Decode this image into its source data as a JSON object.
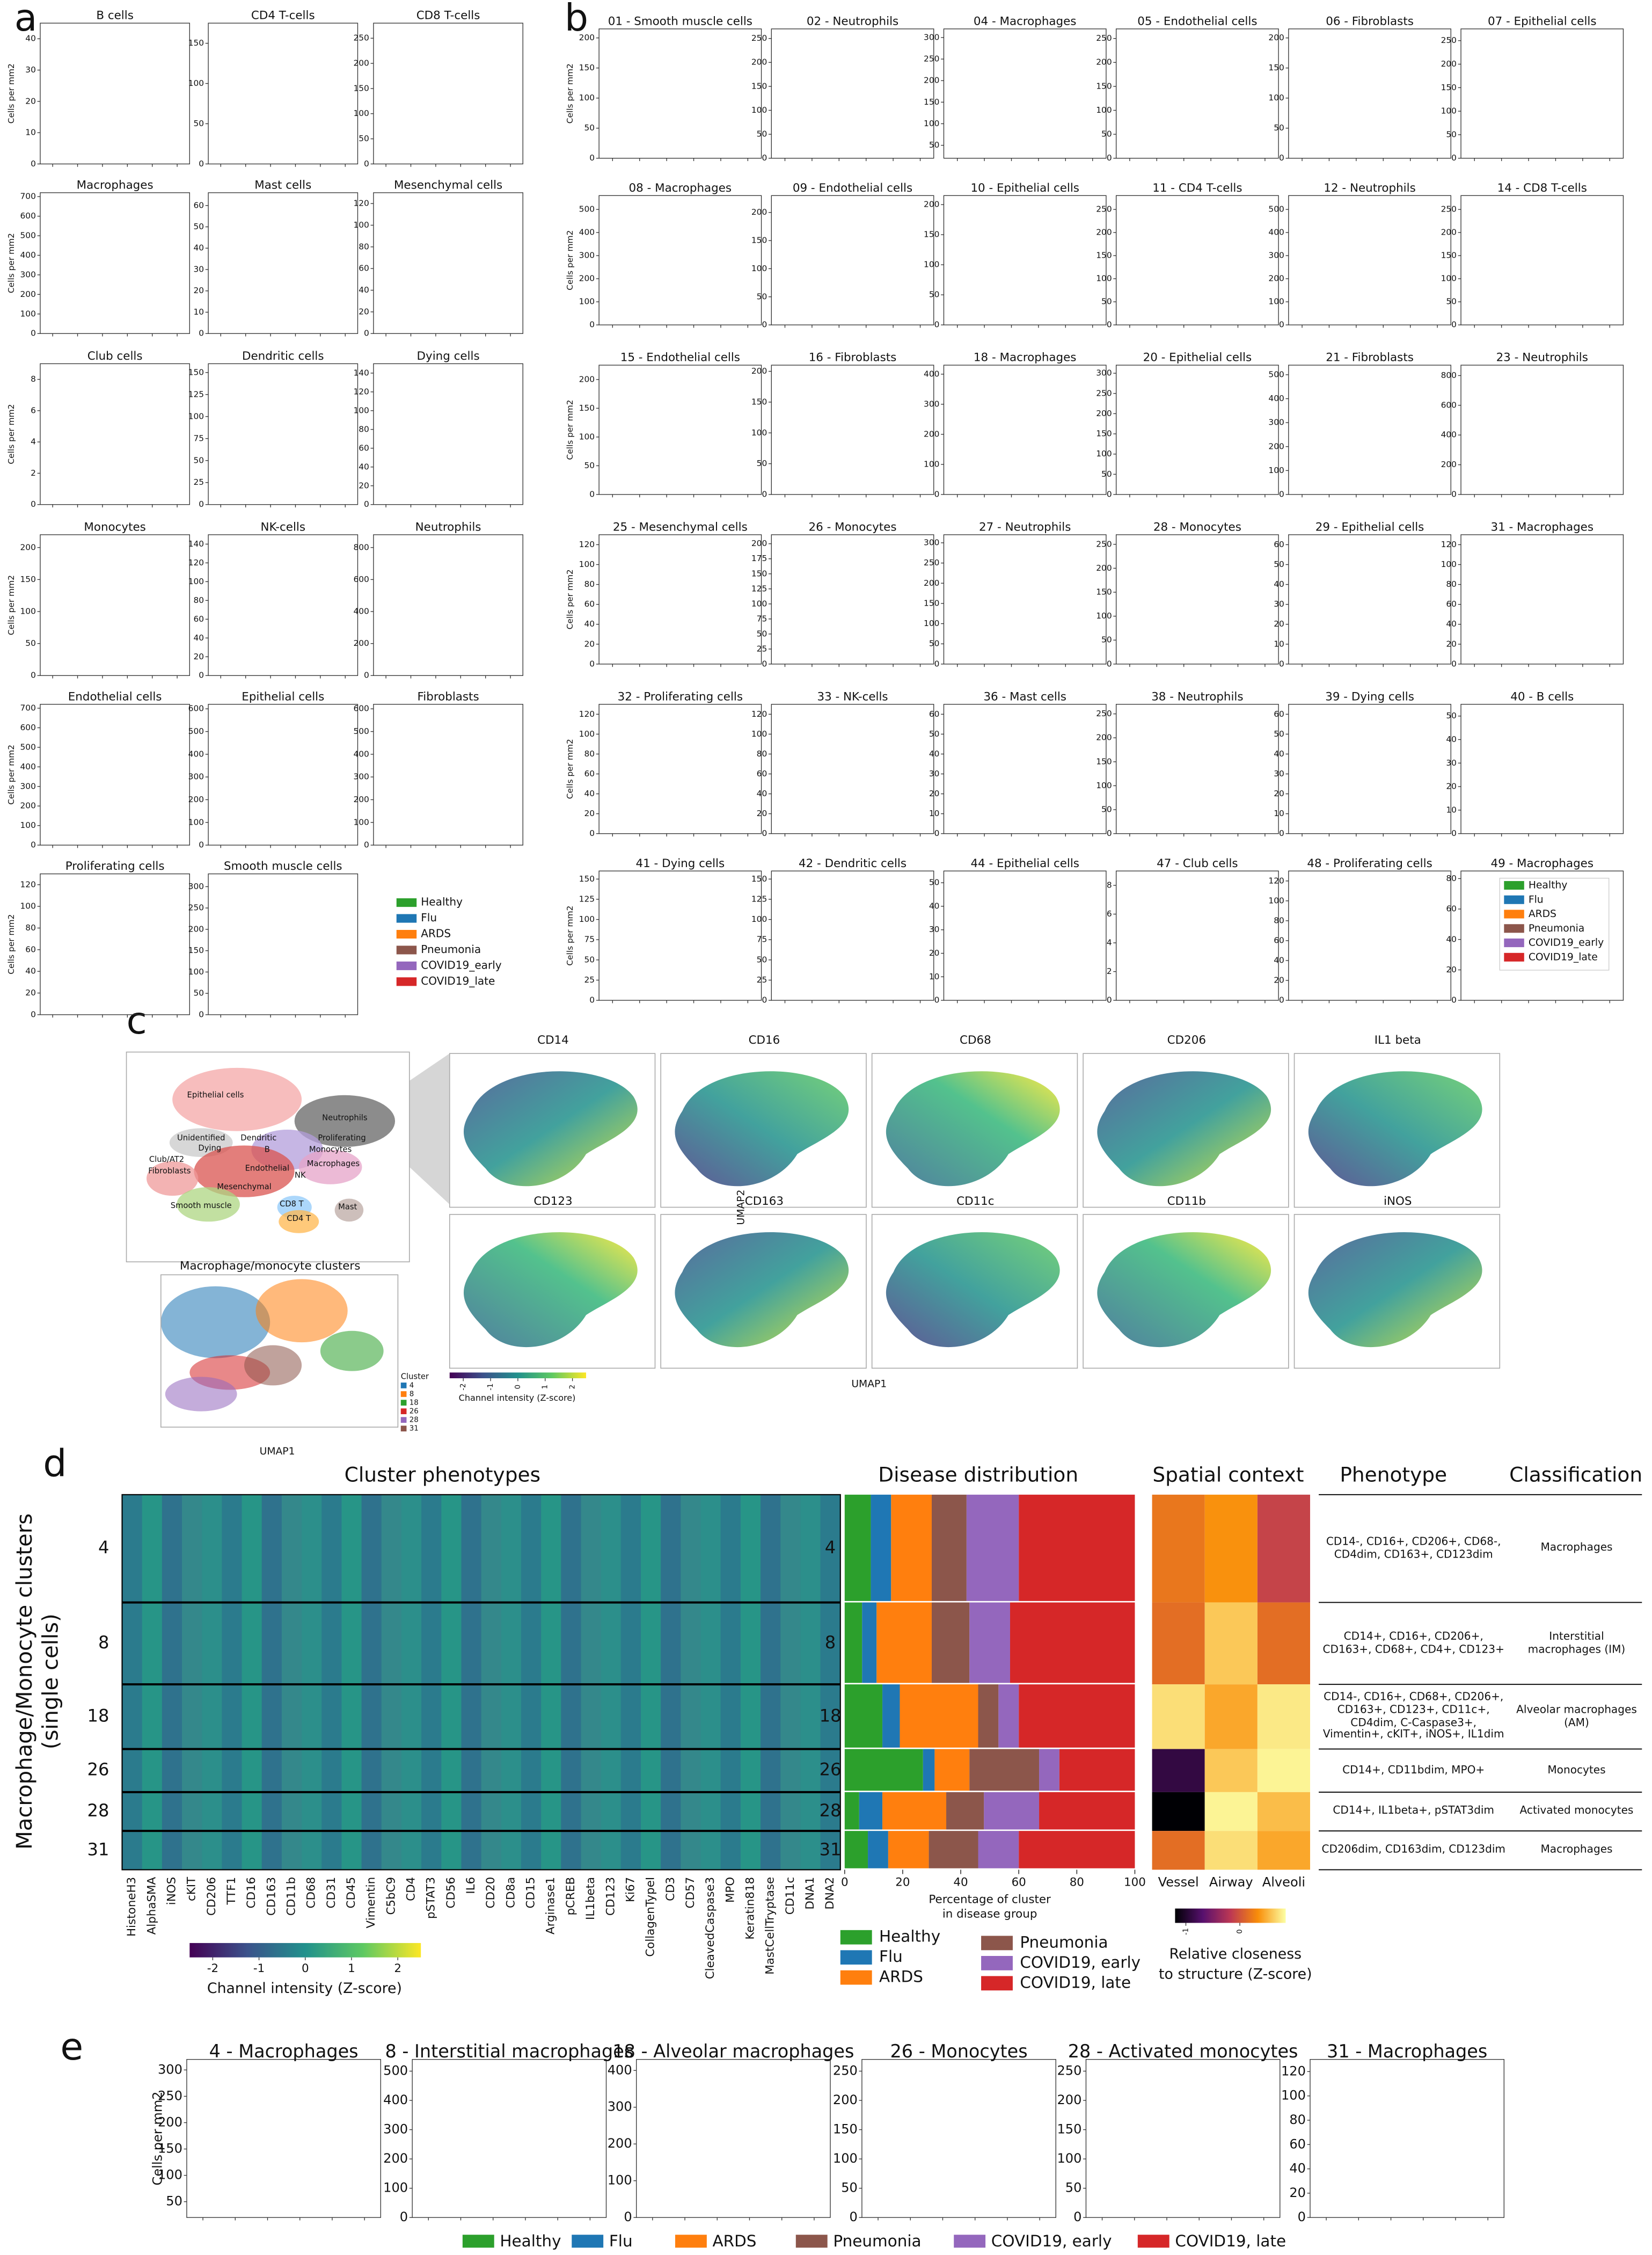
{
  "panel_labels": [
    "a",
    "b",
    "c",
    "d",
    "e"
  ],
  "groups": [
    {
      "name": "Healthy",
      "color": "#2ca02c"
    },
    {
      "name": "Flu",
      "color": "#1f77b4"
    },
    {
      "name": "ARDS",
      "color": "#ff7f0e"
    },
    {
      "name": "Pneumonia",
      "color": "#8c564b"
    },
    {
      "name": "COVID19_early",
      "color": "#9467bd"
    },
    {
      "name": "COVID19_late",
      "color": "#d62728"
    }
  ],
  "panel_a": {
    "y_label": "Cells per mm2",
    "plots": [
      {
        "title": "B cells",
        "ylim": [
          0,
          45
        ],
        "yticks": [
          0,
          10,
          20,
          30,
          40
        ]
      },
      {
        "title": "CD4 T-cells",
        "ylim": [
          0,
          175
        ],
        "yticks": [
          0,
          50,
          100,
          150
        ]
      },
      {
        "title": "CD8 T-cells",
        "ylim": [
          0,
          280
        ],
        "yticks": [
          0,
          50,
          100,
          150,
          200,
          250
        ]
      },
      {
        "title": "Macrophages",
        "ylim": [
          0,
          720
        ],
        "yticks": [
          0,
          100,
          200,
          300,
          400,
          500,
          600,
          700
        ]
      },
      {
        "title": "Mast cells",
        "ylim": [
          0,
          66
        ],
        "yticks": [
          0,
          10,
          20,
          30,
          40,
          50,
          60
        ]
      },
      {
        "title": "Mesenchymal cells",
        "ylim": [
          0,
          130
        ],
        "yticks": [
          0,
          20,
          40,
          60,
          80,
          100,
          120
        ]
      },
      {
        "title": "Club cells",
        "ylim": [
          0,
          9
        ],
        "yticks": [
          0,
          2,
          4,
          6,
          8
        ]
      },
      {
        "title": "Dendritic cells",
        "ylim": [
          0,
          160
        ],
        "yticks": [
          0,
          25,
          50,
          75,
          100,
          125,
          150
        ]
      },
      {
        "title": "Dying cells",
        "ylim": [
          0,
          150
        ],
        "yticks": [
          0,
          20,
          40,
          60,
          80,
          100,
          120,
          140
        ]
      },
      {
        "title": "Monocytes",
        "ylim": [
          0,
          220
        ],
        "yticks": [
          0,
          50,
          100,
          150,
          200
        ]
      },
      {
        "title": "NK-cells",
        "ylim": [
          0,
          150
        ],
        "yticks": [
          0,
          20,
          40,
          60,
          80,
          100,
          120,
          140
        ]
      },
      {
        "title": "Neutrophils",
        "ylim": [
          0,
          880
        ],
        "yticks": [
          0,
          200,
          400,
          600,
          800
        ]
      },
      {
        "title": "Endothelial cells",
        "ylim": [
          0,
          720
        ],
        "yticks": [
          0,
          100,
          200,
          300,
          400,
          500,
          600,
          700
        ]
      },
      {
        "title": "Epithelial cells",
        "ylim": [
          0,
          620
        ],
        "yticks": [
          0,
          100,
          200,
          300,
          400,
          500,
          600
        ]
      },
      {
        "title": "Fibroblasts",
        "ylim": [
          0,
          620
        ],
        "yticks": [
          0,
          100,
          200,
          300,
          400,
          500,
          600
        ]
      },
      {
        "title": "Proliferating cells",
        "ylim": [
          0,
          130
        ],
        "yticks": [
          0,
          20,
          40,
          60,
          80,
          100,
          120
        ]
      },
      {
        "title": "Smooth muscle cells",
        "ylim": [
          0,
          330
        ],
        "yticks": [
          0,
          50,
          100,
          150,
          200,
          250,
          300
        ]
      }
    ]
  },
  "panel_b": {
    "y_label": "Cells per mm2",
    "plots": [
      {
        "title": "01 - Smooth muscle cells",
        "ylim": [
          0,
          215
        ],
        "yticks": [
          0,
          50,
          100,
          150,
          200
        ]
      },
      {
        "title": "02 - Neutrophils",
        "ylim": [
          0,
          270
        ],
        "yticks": [
          0,
          50,
          100,
          150,
          200,
          250
        ]
      },
      {
        "title": "04 - Macrophages",
        "ylim": [
          20,
          320
        ],
        "yticks": [
          50,
          100,
          150,
          200,
          250,
          300
        ]
      },
      {
        "title": "05 - Endothelial cells",
        "ylim": [
          0,
          270
        ],
        "yticks": [
          0,
          50,
          100,
          150,
          200,
          250
        ]
      },
      {
        "title": "06 - Fibroblasts",
        "ylim": [
          0,
          215
        ],
        "yticks": [
          0,
          50,
          100,
          150,
          200
        ]
      },
      {
        "title": "07 - Epithelial cells",
        "ylim": [
          0,
          275
        ],
        "yticks": [
          0,
          50,
          100,
          150,
          200,
          250
        ]
      },
      {
        "title": "08 - Macrophages",
        "ylim": [
          0,
          560
        ],
        "yticks": [
          0,
          100,
          200,
          300,
          400,
          500
        ]
      },
      {
        "title": "09 - Endothelial cells",
        "ylim": [
          0,
          230
        ],
        "yticks": [
          0,
          50,
          100,
          150,
          200
        ]
      },
      {
        "title": "10 - Epithelial cells",
        "ylim": [
          0,
          215
        ],
        "yticks": [
          0,
          50,
          100,
          150,
          200
        ]
      },
      {
        "title": "11 - CD4 T-cells",
        "ylim": [
          0,
          280
        ],
        "yticks": [
          0,
          50,
          100,
          150,
          200,
          250
        ]
      },
      {
        "title": "12 - Neutrophils",
        "ylim": [
          0,
          560
        ],
        "yticks": [
          0,
          100,
          200,
          300,
          400,
          500
        ]
      },
      {
        "title": "14 - CD8 T-cells",
        "ylim": [
          0,
          280
        ],
        "yticks": [
          0,
          50,
          100,
          150,
          200,
          250
        ]
      },
      {
        "title": "15 - Endothelial cells",
        "ylim": [
          0,
          225
        ],
        "yticks": [
          0,
          50,
          100,
          150,
          200
        ]
      },
      {
        "title": "16 - Fibroblasts",
        "ylim": [
          0,
          210
        ],
        "yticks": [
          0,
          50,
          100,
          150,
          200
        ]
      },
      {
        "title": "18 - Macrophages",
        "ylim": [
          0,
          430
        ],
        "yticks": [
          0,
          100,
          200,
          300,
          400
        ]
      },
      {
        "title": "20 - Epithelial cells",
        "ylim": [
          0,
          320
        ],
        "yticks": [
          0,
          50,
          100,
          150,
          200,
          250,
          300
        ]
      },
      {
        "title": "21 - Fibroblasts",
        "ylim": [
          0,
          540
        ],
        "yticks": [
          0,
          100,
          200,
          300,
          400,
          500
        ]
      },
      {
        "title": "23 - Neutrophils",
        "ylim": [
          0,
          870
        ],
        "yticks": [
          0,
          200,
          400,
          600,
          800
        ]
      },
      {
        "title": "25 - Mesenchymal cells",
        "ylim": [
          0,
          130
        ],
        "yticks": [
          0,
          20,
          40,
          60,
          80,
          100,
          120
        ]
      },
      {
        "title": "26 - Monocytes",
        "ylim": [
          0,
          215
        ],
        "yticks": [
          0,
          25,
          50,
          75,
          100,
          125,
          150,
          175,
          200
        ]
      },
      {
        "title": "27 - Neutrophils",
        "ylim": [
          0,
          320
        ],
        "yticks": [
          0,
          50,
          100,
          150,
          200,
          250,
          300
        ]
      },
      {
        "title": "28 - Monocytes",
        "ylim": [
          0,
          270
        ],
        "yticks": [
          0,
          50,
          100,
          150,
          200,
          250
        ]
      },
      {
        "title": "29 - Epithelial cells",
        "ylim": [
          0,
          65
        ],
        "yticks": [
          0,
          10,
          20,
          30,
          40,
          50,
          60
        ]
      },
      {
        "title": "31 - Macrophages",
        "ylim": [
          0,
          130
        ],
        "yticks": [
          0,
          20,
          40,
          60,
          80,
          100,
          120
        ]
      },
      {
        "title": "32 - Proliferating cells",
        "ylim": [
          0,
          130
        ],
        "yticks": [
          0,
          20,
          40,
          60,
          80,
          100,
          120
        ]
      },
      {
        "title": "33 - NK-cells",
        "ylim": [
          0,
          130
        ],
        "yticks": [
          0,
          20,
          40,
          60,
          80,
          100,
          120
        ]
      },
      {
        "title": "36 - Mast cells",
        "ylim": [
          0,
          65
        ],
        "yticks": [
          0,
          10,
          20,
          30,
          40,
          50,
          60
        ]
      },
      {
        "title": "38 - Neutrophils",
        "ylim": [
          0,
          270
        ],
        "yticks": [
          0,
          50,
          100,
          150,
          200,
          250
        ]
      },
      {
        "title": "39 - Dying cells",
        "ylim": [
          0,
          65
        ],
        "yticks": [
          0,
          10,
          20,
          30,
          40,
          50,
          60
        ]
      },
      {
        "title": "40 - B cells",
        "ylim": [
          0,
          55
        ],
        "yticks": [
          0,
          10,
          20,
          30,
          40,
          50
        ]
      },
      {
        "title": "41 - Dying cells",
        "ylim": [
          0,
          160
        ],
        "yticks": [
          0,
          25,
          50,
          75,
          100,
          125,
          150
        ]
      },
      {
        "title": "42 - Dendritic cells",
        "ylim": [
          0,
          160
        ],
        "yticks": [
          0,
          25,
          50,
          75,
          100,
          125,
          150
        ]
      },
      {
        "title": "44 - Epithelial cells",
        "ylim": [
          0,
          55
        ],
        "yticks": [
          0,
          10,
          20,
          30,
          40,
          50
        ]
      },
      {
        "title": "47 - Club cells",
        "ylim": [
          0,
          9
        ],
        "yticks": [
          0,
          2,
          4,
          6,
          8
        ]
      },
      {
        "title": "48 - Proliferating cells",
        "ylim": [
          0,
          130
        ],
        "yticks": [
          0,
          20,
          40,
          60,
          80,
          100,
          120
        ]
      },
      {
        "title": "49 - Macrophages",
        "ylim": [
          0,
          85
        ],
        "yticks": [
          0,
          20,
          40,
          60,
          80
        ]
      }
    ]
  },
  "panel_c": {
    "overview_labels": [
      "Epithelial cells",
      "Neutrophils",
      "Unidentified",
      "Dendritic",
      "Proliferating",
      "Dying",
      "B",
      "Monocytes",
      "Club/AT2",
      "Macrophages",
      "Fibroblasts",
      "Endothelial",
      "NK",
      "Mesenchymal",
      "Smooth muscle",
      "CD8 T",
      "CD4 T",
      "Mast"
    ],
    "cluster_title": "Macrophage/monocyte clusters",
    "cluster_x_label": "UMAP1",
    "cluster_legend_title": "Cluster",
    "clusters": [
      {
        "name": "4",
        "color": "#1f77b4"
      },
      {
        "name": "8",
        "color": "#ff7f0e"
      },
      {
        "name": "18",
        "color": "#2ca02c"
      },
      {
        "name": "26",
        "color": "#d62728"
      },
      {
        "name": "28",
        "color": "#9467bd"
      },
      {
        "name": "31",
        "color": "#8c564b"
      }
    ],
    "markers": [
      "CD14",
      "CD16",
      "CD68",
      "CD206",
      "IL1 beta",
      "CD123",
      "CD163",
      "CD11c",
      "CD11b",
      "iNOS"
    ],
    "y_label": "UMAP2",
    "x_label": "UMAP1",
    "colorbar_label": "Channel intensity (Z-score)",
    "colorbar_lim": [
      -2.5,
      2.5
    ],
    "colorbar_ticks": [
      -2,
      -1,
      0,
      1,
      2
    ]
  },
  "panel_d": {
    "heatmap_title": "Cluster phenotypes",
    "y_label_lines": [
      "Macrophage/Monocyte clusters",
      "(single cells)"
    ],
    "clusters": [
      "4",
      "8",
      "18",
      "26",
      "28",
      "31"
    ],
    "markers": [
      "HistoneH3",
      "AlphaSMA",
      "iNOS",
      "cKIT",
      "CD206",
      "TTF1",
      "CD16",
      "CD163",
      "CD11b",
      "CD68",
      "CD31",
      "CD45",
      "Vimentin",
      "C5bC9",
      "CD4",
      "pSTAT3",
      "CD56",
      "IL6",
      "CD20",
      "CD8a",
      "CD15",
      "Arginase1",
      "pCREB",
      "IL1beta",
      "CD123",
      "Ki67",
      "CollagenTypeI",
      "CD3",
      "CD57",
      "CleavedCaspase3",
      "MPO",
      "Keratin818",
      "MastCellTryptase",
      "CD11c",
      "DNA1",
      "DNA2"
    ],
    "colorbar_label": "Channel intensity (Z-score)",
    "colorbar_lim": [
      -2.5,
      2.5
    ],
    "colorbar_ticks": [
      -2,
      -1,
      0,
      1,
      2
    ],
    "disease_distribution": {
      "title": "Disease distribution",
      "x_label_lines": [
        "Percentage of cluster",
        "in disease group"
      ],
      "xlim": [
        0,
        100
      ],
      "xticks": [
        0,
        20,
        40,
        60,
        80,
        100
      ],
      "legend": [
        "Healthy",
        "Flu",
        "ARDS",
        "Pneumonia",
        "COVID19, early",
        "COVID19, late"
      ],
      "rows": [
        {
          "values": [
            9,
            7,
            14,
            12,
            18,
            40
          ]
        },
        {
          "values": [
            6,
            5,
            19,
            13,
            14,
            43
          ]
        },
        {
          "values": [
            13,
            6,
            27,
            7,
            7,
            40
          ]
        },
        {
          "values": [
            27,
            4,
            12,
            24,
            7,
            26
          ]
        },
        {
          "values": [
            5,
            8,
            22,
            13,
            19,
            33
          ]
        },
        {
          "values": [
            8,
            7,
            14,
            17,
            14,
            40
          ]
        }
      ]
    },
    "spatial": {
      "title": "Spatial context",
      "columns": [
        "Vessel",
        "Airway",
        "Alveoli"
      ],
      "clim": [
        -1.2,
        0.85
      ],
      "colorbar_ticks": [
        -1,
        0
      ],
      "colorbar_label_lines": [
        "Relative closeness",
        "to structure (Z-score)"
      ],
      "values": [
        [
          0.2,
          0.35,
          -0.1
        ],
        [
          0.15,
          0.6,
          0.15
        ],
        [
          0.7,
          0.45,
          0.75
        ],
        [
          -0.9,
          0.6,
          0.8
        ],
        [
          -1.2,
          0.8,
          0.55
        ],
        [
          0.15,
          0.7,
          0.45
        ]
      ]
    },
    "table": {
      "headers": [
        "Phenotype",
        "Classification"
      ],
      "rows": [
        [
          "CD14-, CD16+, CD206+, CD68-, CD4dim, CD163+, CD123dim",
          "Macrophages"
        ],
        [
          "CD14+, CD16+, CD206+, CD163+, CD68+, CD4+, CD123+",
          "Interstitial macrophages (IM)"
        ],
        [
          "CD14-, CD16+, CD68+, CD206+, CD163+, CD123+, CD11c+, CD4dim, C-Caspase3+, Vimentin+, cKIT+, iNOS+, IL1dim",
          "Alveolar macrophages (AM)"
        ],
        [
          "CD14+, CD11bdim, MPO+",
          "Monocytes"
        ],
        [
          "CD14+, IL1beta+, pSTAT3dim",
          "Activated monocytes"
        ],
        [
          "CD206dim, CD163dim, CD123dim",
          "Macrophages"
        ]
      ]
    }
  },
  "panel_e": {
    "y_label": "Cells per mm2",
    "legend": [
      "Healthy",
      "Flu",
      "ARDS",
      "Pneumonia",
      "COVID19, early",
      "COVID19, late"
    ],
    "plots": [
      {
        "title": "4 - Macrophages",
        "ylim": [
          20,
          320
        ],
        "yticks": [
          50,
          100,
          150,
          200,
          250,
          300
        ]
      },
      {
        "title": "8 - Interstitial macrophages",
        "ylim": [
          0,
          540
        ],
        "yticks": [
          0,
          100,
          200,
          300,
          400,
          500
        ]
      },
      {
        "title": "18 - Alveolar macrophages",
        "ylim": [
          0,
          430
        ],
        "yticks": [
          0,
          100,
          200,
          300,
          400
        ]
      },
      {
        "title": "26 - Monocytes",
        "ylim": [
          0,
          270
        ],
        "yticks": [
          0,
          50,
          100,
          150,
          200,
          250
        ]
      },
      {
        "title": "28 - Activated monocytes",
        "ylim": [
          0,
          270
        ],
        "yticks": [
          0,
          50,
          100,
          150,
          200,
          250
        ]
      },
      {
        "title": "31 - Macrophages",
        "ylim": [
          0,
          130
        ],
        "yticks": [
          0,
          20,
          40,
          60,
          80,
          100,
          120
        ]
      }
    ]
  }
}
